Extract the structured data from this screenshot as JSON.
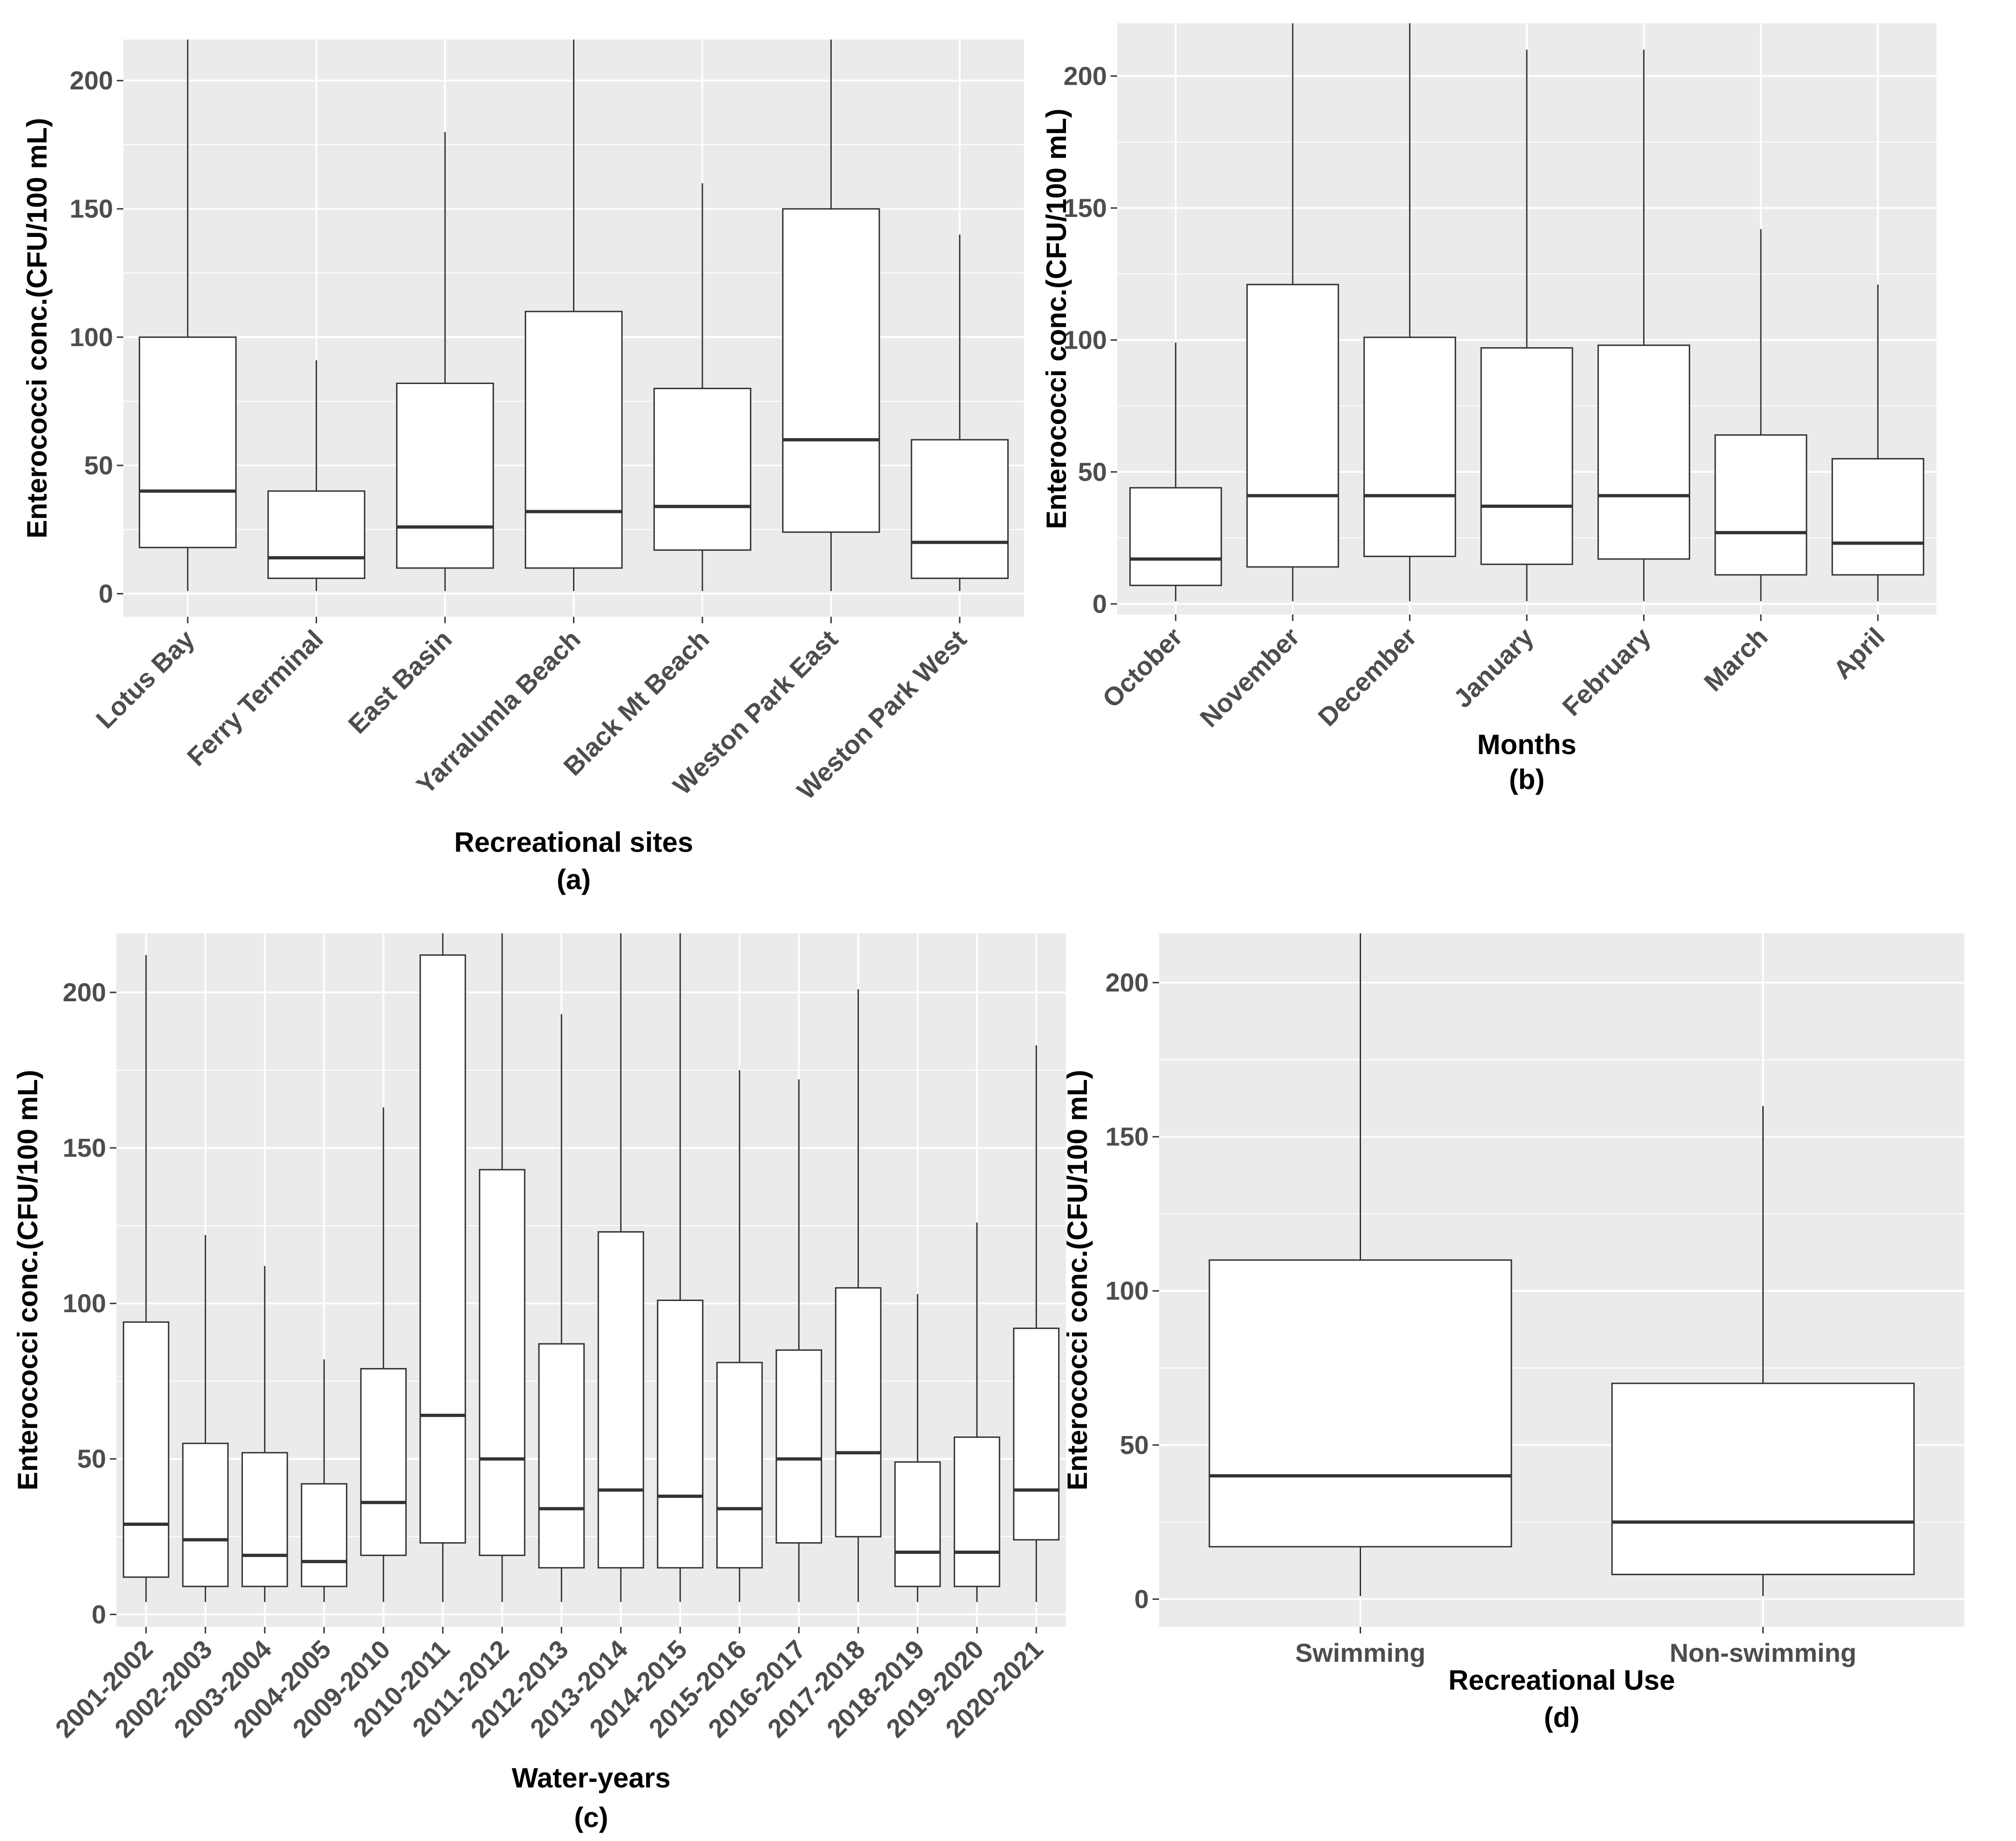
{
  "colors": {
    "panel_background": "#ebebeb",
    "major_grid": "#ffffff",
    "box_fill": "#ffffff",
    "box_stroke": "#333333",
    "tick_text": "#4d4d4d",
    "title_text": "#000000"
  },
  "chart_data": [
    {
      "type": "boxplot",
      "panel_label": "(a)",
      "xlabel": "Recreational sites",
      "ylabel": "Enterococci conc.(CFU/100 mL)",
      "ylim": [
        -9,
        216
      ],
      "yticks": [
        0,
        50,
        100,
        150,
        200
      ],
      "grid": true,
      "categories": [
        "Lotus Bay",
        "Ferry Terminal",
        "East Basin",
        "Yarralumla Beach",
        "Black Mt Beach",
        "Weston Park East",
        "Weston Park West"
      ],
      "boxes": [
        {
          "whisker_low": 1,
          "q1": 18,
          "median": 40,
          "q3": 100,
          "whisker_high": 216
        },
        {
          "whisker_low": 1,
          "q1": 6,
          "median": 14,
          "q3": 40,
          "whisker_high": 91
        },
        {
          "whisker_low": 1,
          "q1": 10,
          "median": 26,
          "q3": 82,
          "whisker_high": 180
        },
        {
          "whisker_low": 1,
          "q1": 10,
          "median": 32,
          "q3": 110,
          "whisker_high": 216
        },
        {
          "whisker_low": 1,
          "q1": 17,
          "median": 34,
          "q3": 80,
          "whisker_high": 160
        },
        {
          "whisker_low": 1,
          "q1": 24,
          "median": 60,
          "q3": 150,
          "whisker_high": 216
        },
        {
          "whisker_low": 1,
          "q1": 6,
          "median": 20,
          "q3": 60,
          "whisker_high": 140
        }
      ]
    },
    {
      "type": "boxplot",
      "panel_label": "(b)",
      "xlabel": "Months",
      "ylabel": "Enterococci conc.(CFU/100 mL)",
      "ylim": [
        -4,
        220
      ],
      "yticks": [
        0,
        50,
        100,
        150,
        200
      ],
      "grid": true,
      "categories": [
        "October",
        "November",
        "December",
        "January",
        "February",
        "March",
        "April"
      ],
      "boxes": [
        {
          "whisker_low": 1,
          "q1": 7,
          "median": 17,
          "q3": 44,
          "whisker_high": 99
        },
        {
          "whisker_low": 1,
          "q1": 14,
          "median": 41,
          "q3": 121,
          "whisker_high": 220
        },
        {
          "whisker_low": 1,
          "q1": 18,
          "median": 41,
          "q3": 101,
          "whisker_high": 220
        },
        {
          "whisker_low": 1,
          "q1": 15,
          "median": 37,
          "q3": 97,
          "whisker_high": 210
        },
        {
          "whisker_low": 1,
          "q1": 17,
          "median": 41,
          "q3": 98,
          "whisker_high": 210
        },
        {
          "whisker_low": 1,
          "q1": 11,
          "median": 27,
          "q3": 64,
          "whisker_high": 142
        },
        {
          "whisker_low": 1,
          "q1": 11,
          "median": 23,
          "q3": 55,
          "whisker_high": 121
        }
      ]
    },
    {
      "type": "boxplot",
      "panel_label": "(c)",
      "xlabel": "Water-years",
      "ylabel": "Enterococci conc.(CFU/100 mL)",
      "ylim": [
        -4,
        219
      ],
      "yticks": [
        0,
        50,
        100,
        150,
        200
      ],
      "grid": true,
      "categories": [
        "2001-2002",
        "2002-2003",
        "2003-2004",
        "2004-2005",
        "2009-2010",
        "2010-2011",
        "2011-2012",
        "2012-2013",
        "2013-2014",
        "2014-2015",
        "2015-2016",
        "2016-2017",
        "2017-2018",
        "2018-2019",
        "2019-2020",
        "2020-2021"
      ],
      "boxes": [
        {
          "whisker_low": 4,
          "q1": 12,
          "median": 29,
          "q3": 94,
          "whisker_high": 212
        },
        {
          "whisker_low": 4,
          "q1": 9,
          "median": 24,
          "q3": 55,
          "whisker_high": 122
        },
        {
          "whisker_low": 4,
          "q1": 9,
          "median": 19,
          "q3": 52,
          "whisker_high": 112
        },
        {
          "whisker_low": 4,
          "q1": 9,
          "median": 17,
          "q3": 42,
          "whisker_high": 82
        },
        {
          "whisker_low": 4,
          "q1": 19,
          "median": 36,
          "q3": 79,
          "whisker_high": 163
        },
        {
          "whisker_low": 4,
          "q1": 23,
          "median": 64,
          "q3": 212,
          "whisker_high": 219
        },
        {
          "whisker_low": 4,
          "q1": 19,
          "median": 50,
          "q3": 143,
          "whisker_high": 219
        },
        {
          "whisker_low": 4,
          "q1": 15,
          "median": 34,
          "q3": 87,
          "whisker_high": 193
        },
        {
          "whisker_low": 4,
          "q1": 15,
          "median": 40,
          "q3": 123,
          "whisker_high": 219
        },
        {
          "whisker_low": 4,
          "q1": 15,
          "median": 38,
          "q3": 101,
          "whisker_high": 219
        },
        {
          "whisker_low": 4,
          "q1": 15,
          "median": 34,
          "q3": 81,
          "whisker_high": 175
        },
        {
          "whisker_low": 4,
          "q1": 23,
          "median": 50,
          "q3": 85,
          "whisker_high": 172
        },
        {
          "whisker_low": 4,
          "q1": 25,
          "median": 52,
          "q3": 105,
          "whisker_high": 201
        },
        {
          "whisker_low": 4,
          "q1": 9,
          "median": 20,
          "q3": 49,
          "whisker_high": 103
        },
        {
          "whisker_low": 4,
          "q1": 9,
          "median": 20,
          "q3": 57,
          "whisker_high": 126
        },
        {
          "whisker_low": 4,
          "q1": 24,
          "median": 40,
          "q3": 92,
          "whisker_high": 183
        }
      ]
    },
    {
      "type": "boxplot",
      "panel_label": "(d)",
      "xlabel": "Recreational Use",
      "ylabel": "Enterococci conc.(CFU/100 mL)",
      "ylim": [
        -9,
        216
      ],
      "yticks": [
        0,
        50,
        100,
        150,
        200
      ],
      "grid": true,
      "categories": [
        "Swimming",
        "Non-swimming"
      ],
      "boxes": [
        {
          "whisker_low": 1,
          "q1": 17,
          "median": 40,
          "q3": 110,
          "whisker_high": 216
        },
        {
          "whisker_low": 1,
          "q1": 8,
          "median": 25,
          "q3": 70,
          "whisker_high": 160
        }
      ]
    }
  ]
}
